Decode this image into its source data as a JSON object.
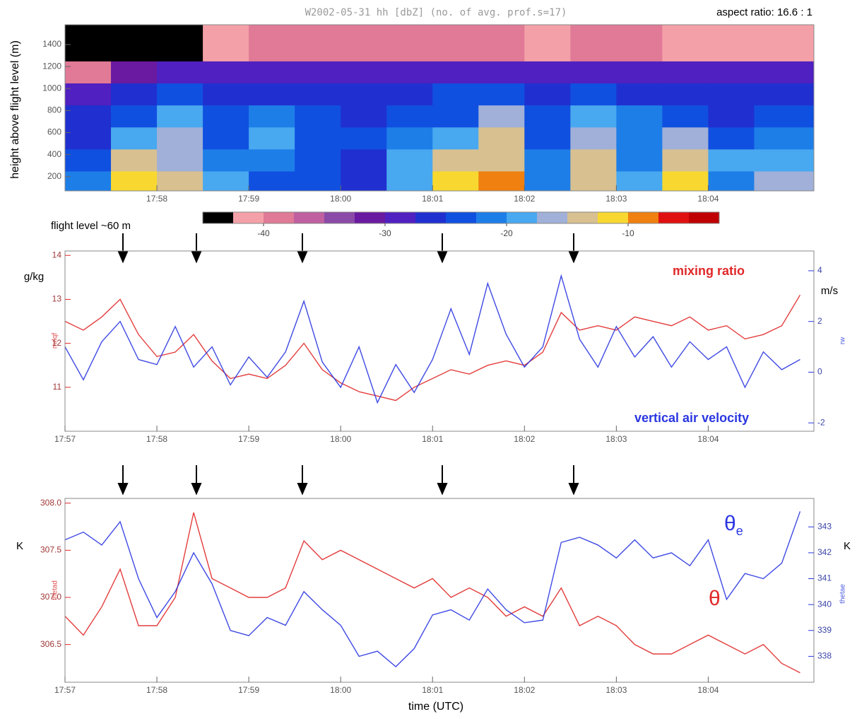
{
  "chart_data": [
    {
      "type": "heatmap",
      "title": "W2002-05-31 hh [dbZ] (no. of avg. prof.s=17)",
      "annotation": "aspect ratio: 16.6 : 1",
      "y_label": "height above flight level (m)",
      "x_bins": [
        1077,
        1077.5,
        1078,
        1078.5,
        1079,
        1079.5,
        1080,
        1080.5,
        1081,
        1081.5,
        1082,
        1082.5,
        1083,
        1083.5,
        1084,
        1084.5,
        1085.15
      ],
      "y_bins": [
        70,
        250,
        450,
        650,
        850,
        1050,
        1250,
        1580
      ],
      "z": [
        [
          -22,
          -12,
          -14,
          -18,
          -23,
          -24,
          -26,
          -20,
          -11,
          -10,
          -22,
          -13,
          -18,
          -12,
          -22,
          -16
        ],
        [
          -24,
          -15,
          -17,
          -21,
          -22,
          -23,
          -26,
          -19,
          -14,
          -13,
          -21,
          -15,
          -21,
          -15,
          -20,
          -18
        ],
        [
          -26,
          -19,
          -17,
          -23,
          -20,
          -23,
          -24,
          -22,
          -18,
          -15,
          -23,
          -17,
          -22,
          -17,
          -24,
          -21
        ],
        [
          -27,
          -24,
          -20,
          -24,
          -22,
          -25,
          -26,
          -25,
          -23,
          -17,
          -24,
          -20,
          -22,
          -24,
          -26,
          -25
        ],
        [
          -29,
          -27,
          -24,
          -26,
          -26,
          -27,
          -27,
          -27,
          -25,
          -23,
          -26,
          -24,
          -26,
          -26,
          -27,
          -27
        ],
        [
          -40,
          -32,
          -28,
          -28,
          -28,
          -29,
          -29,
          -29,
          -28,
          -28,
          -28,
          -28,
          -29,
          -30,
          -30,
          -30
        ],
        [
          -48,
          -48,
          -44,
          -42,
          -40,
          -40,
          -40,
          -40,
          -40,
          -40,
          -42,
          -40,
          -40,
          -42,
          -42,
          -42
        ]
      ],
      "xlim": [
        1077,
        1085.15
      ],
      "ylim": [
        70,
        1580
      ],
      "xticks": [
        {
          "value": 1078,
          "label": "17:58"
        },
        {
          "value": 1079,
          "label": "17:59"
        },
        {
          "value": 1080,
          "label": "18:00"
        },
        {
          "value": 1081,
          "label": "18:01"
        },
        {
          "value": 1082,
          "label": "18:02"
        },
        {
          "value": 1083,
          "label": "18:03"
        },
        {
          "value": 1084,
          "label": "18:04"
        }
      ],
      "yticks": [
        200,
        400,
        600,
        800,
        1000,
        1200,
        1400
      ],
      "colormap": [
        "#000000",
        "#f4a0a8",
        "#e07a96",
        "#c060a0",
        "#8a4aa8",
        "#6a1aa0",
        "#5020c0",
        "#2030d0",
        "#1050e0",
        "#1e7ee8",
        "#48a8f0",
        "#a0b0d8",
        "#d8c090",
        "#f8d830",
        "#f08010",
        "#e01010",
        "#c00000"
      ],
      "zlim": [
        -45,
        -2.5
      ],
      "colorbar_ticks": [
        -40,
        -30,
        -20,
        -10
      ]
    },
    {
      "type": "line",
      "annotation": "flight level ~60 m",
      "y_label": "mrlqf",
      "y_unit": "g/kg",
      "y2_label": "rw",
      "y2_unit": "m/s",
      "x": [
        1077,
        1077.2,
        1077.4,
        1077.6,
        1077.8,
        1078,
        1078.2,
        1078.4,
        1078.6,
        1078.8,
        1079,
        1079.2,
        1079.4,
        1079.6,
        1079.8,
        1080,
        1080.2,
        1080.4,
        1080.6,
        1080.8,
        1081,
        1081.2,
        1081.4,
        1081.6,
        1081.8,
        1082,
        1082.2,
        1082.4,
        1082.6,
        1082.8,
        1083,
        1083.2,
        1083.4,
        1083.6,
        1083.8,
        1084,
        1084.2,
        1084.4,
        1084.6,
        1084.8,
        1085
      ],
      "series": [
        {
          "name": "mixing ratio",
          "color": "#e02828",
          "values": [
            12.5,
            12.3,
            12.6,
            13.0,
            12.2,
            11.7,
            11.8,
            12.2,
            11.6,
            11.2,
            11.3,
            11.2,
            11.5,
            12.0,
            11.4,
            11.1,
            10.9,
            10.8,
            10.7,
            11.0,
            11.2,
            11.4,
            11.3,
            11.5,
            11.6,
            11.5,
            11.8,
            12.7,
            12.3,
            12.4,
            12.3,
            12.6,
            12.5,
            12.4,
            12.6,
            12.3,
            12.4,
            12.1,
            12.2,
            12.4,
            13.1
          ]
        },
        {
          "name": "vertical air velocity",
          "color": "#2a36e0",
          "axis": "y2",
          "values": [
            1.0,
            -0.3,
            1.2,
            2.0,
            0.5,
            0.3,
            1.8,
            0.2,
            1.0,
            -0.5,
            0.6,
            -0.2,
            0.8,
            2.8,
            0.4,
            -0.6,
            1.0,
            -1.2,
            0.3,
            -0.8,
            0.5,
            2.5,
            0.7,
            3.5,
            1.5,
            0.2,
            1.0,
            3.8,
            1.3,
            0.2,
            1.8,
            0.6,
            1.4,
            0.2,
            1.2,
            0.5,
            1.0,
            -0.6,
            0.8,
            0.1,
            0.5
          ]
        }
      ],
      "xlim": [
        1077,
        1085.15
      ],
      "ylim": [
        10,
        14.1
      ],
      "y2lim": [
        -2.33,
        4.78
      ],
      "xticks": [
        {
          "value": 1077,
          "label": "17:57"
        },
        {
          "value": 1078,
          "label": "17:58"
        },
        {
          "value": 1079,
          "label": "17:59"
        },
        {
          "value": 1080,
          "label": "18:00"
        },
        {
          "value": 1081,
          "label": "18:01"
        },
        {
          "value": 1082,
          "label": "18:02"
        },
        {
          "value": 1083,
          "label": "18:03"
        },
        {
          "value": 1084,
          "label": "18:04"
        }
      ],
      "yticks": [
        11,
        12,
        13,
        14
      ],
      "y2ticks": [
        -2,
        0,
        2,
        4
      ]
    },
    {
      "type": "line",
      "y_label": "thetad",
      "y_unit": "K",
      "y2_label": "thetae",
      "y2_unit": "K",
      "x_label": "time (UTC)",
      "x": [
        1077,
        1077.2,
        1077.4,
        1077.6,
        1077.8,
        1078,
        1078.2,
        1078.4,
        1078.6,
        1078.8,
        1079,
        1079.2,
        1079.4,
        1079.6,
        1079.8,
        1080,
        1080.2,
        1080.4,
        1080.6,
        1080.8,
        1081,
        1081.2,
        1081.4,
        1081.6,
        1081.8,
        1082,
        1082.2,
        1082.4,
        1082.6,
        1082.8,
        1083,
        1083.2,
        1083.4,
        1083.6,
        1083.8,
        1084,
        1084.2,
        1084.4,
        1084.6,
        1084.8,
        1085
      ],
      "series": [
        {
          "name": "θ",
          "color": "#e02828",
          "values": [
            306.8,
            306.6,
            306.9,
            307.3,
            306.7,
            306.7,
            307.0,
            307.9,
            307.2,
            307.1,
            307.0,
            307.0,
            307.1,
            307.6,
            307.4,
            307.5,
            307.4,
            307.3,
            307.2,
            307.1,
            307.2,
            307.0,
            307.1,
            307.0,
            306.8,
            306.9,
            306.8,
            307.1,
            306.7,
            306.8,
            306.7,
            306.5,
            306.4,
            306.4,
            306.5,
            306.6,
            306.5,
            306.4,
            306.5,
            306.3,
            306.2
          ]
        },
        {
          "name": "θ",
          "name_subscript": "e",
          "color": "#2a36e0",
          "axis": "y2",
          "values": [
            342.5,
            342.8,
            342.3,
            343.2,
            341.0,
            339.5,
            340.5,
            342.0,
            340.8,
            339.0,
            338.8,
            339.5,
            339.2,
            340.5,
            339.8,
            339.2,
            338.0,
            338.2,
            337.6,
            338.3,
            339.6,
            339.8,
            339.4,
            340.6,
            339.8,
            339.3,
            339.4,
            342.4,
            342.6,
            342.3,
            341.8,
            342.5,
            341.8,
            342.0,
            341.5,
            342.5,
            340.2,
            341.2,
            341.0,
            341.6,
            343.6
          ]
        }
      ],
      "xlim": [
        1077,
        1085.15
      ],
      "ylim": [
        306.1,
        308.05
      ],
      "y2lim": [
        337.0,
        344.1
      ],
      "xticks": [
        {
          "value": 1077,
          "label": "17:57"
        },
        {
          "value": 1078,
          "label": "17:58"
        },
        {
          "value": 1079,
          "label": "17:59"
        },
        {
          "value": 1080,
          "label": "18:00"
        },
        {
          "value": 1081,
          "label": "18:01"
        },
        {
          "value": 1082,
          "label": "18:02"
        },
        {
          "value": 1083,
          "label": "18:03"
        },
        {
          "value": 1084,
          "label": "18:04"
        }
      ],
      "yticks": [
        306.5,
        {
          "value": 307,
          "label": "307.0"
        },
        307.5,
        {
          "value": 308,
          "label": "308.0"
        }
      ],
      "y2ticks": [
        338,
        339,
        340,
        341,
        342,
        343
      ]
    }
  ]
}
